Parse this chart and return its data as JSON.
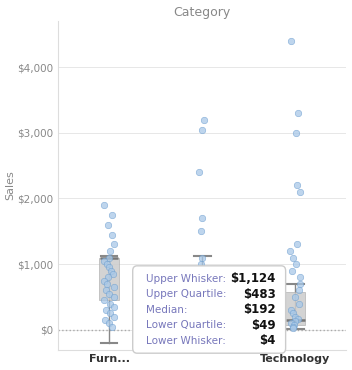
{
  "title": "Category",
  "ylabel": "Sales",
  "ylim": [
    -300,
    4700
  ],
  "yticks": [
    0,
    1000,
    2000,
    3000,
    4000
  ],
  "ytick_labels": [
    "$0",
    "$1,000",
    "$2,000",
    "$3,000",
    "$4,000"
  ],
  "background_color": "#ffffff",
  "plot_bg": "#ffffff",
  "box_color": "#cccccc",
  "whisker_color": "#888888",
  "median_color": "#777777",
  "dot_color": "#a8c8e8",
  "dot_edge_color": "#6699cc",
  "axis_color": "#dddddd",
  "tick_color": "#888888",
  "title_color": "#888888",
  "label_color": "#888888",
  "zero_line_color": "#aaaaaa",
  "furniture": {
    "median": 1090,
    "q1": 450,
    "q3": 1100,
    "lower_whisker": -200,
    "upper_whisker": 1130,
    "dots": [
      1900,
      1750,
      1600,
      1450,
      1300,
      1200,
      1100,
      1050,
      1000,
      950,
      900,
      850,
      800,
      750,
      700,
      650,
      600,
      550,
      500,
      450,
      400,
      350,
      300,
      250,
      200,
      150,
      100,
      50
    ]
  },
  "office": {
    "upper_whisker": 1124,
    "q3": 483,
    "median": 192,
    "q1": 49,
    "lower_whisker": 4,
    "dots": [
      3200,
      3050,
      2400,
      1700,
      1500,
      1100,
      1000,
      900,
      800,
      700,
      600,
      520,
      450,
      380,
      320,
      280,
      240,
      200,
      170,
      140,
      110,
      90,
      70,
      50,
      35,
      20,
      10,
      4
    ]
  },
  "technology": {
    "upper_whisker": 700,
    "q3": 580,
    "median": 150,
    "q1": 80,
    "lower_whisker": 10,
    "dots": [
      4400,
      3300,
      3000,
      2200,
      2100,
      1300,
      1200,
      1100,
      1000,
      900,
      800,
      700,
      600,
      500,
      400,
      300,
      250,
      200,
      160,
      130,
      100,
      80,
      50,
      30
    ]
  },
  "tooltip": {
    "upper_whisker": "$1,124",
    "upper_quartile": "$483",
    "median": "$192",
    "lower_quartile": "$49",
    "lower_whisker": "$4"
  },
  "x_positions": [
    0,
    1,
    2
  ],
  "x_tick_positions": [
    0,
    2
  ],
  "x_tick_labels": [
    "Furn...",
    "Technology"
  ]
}
